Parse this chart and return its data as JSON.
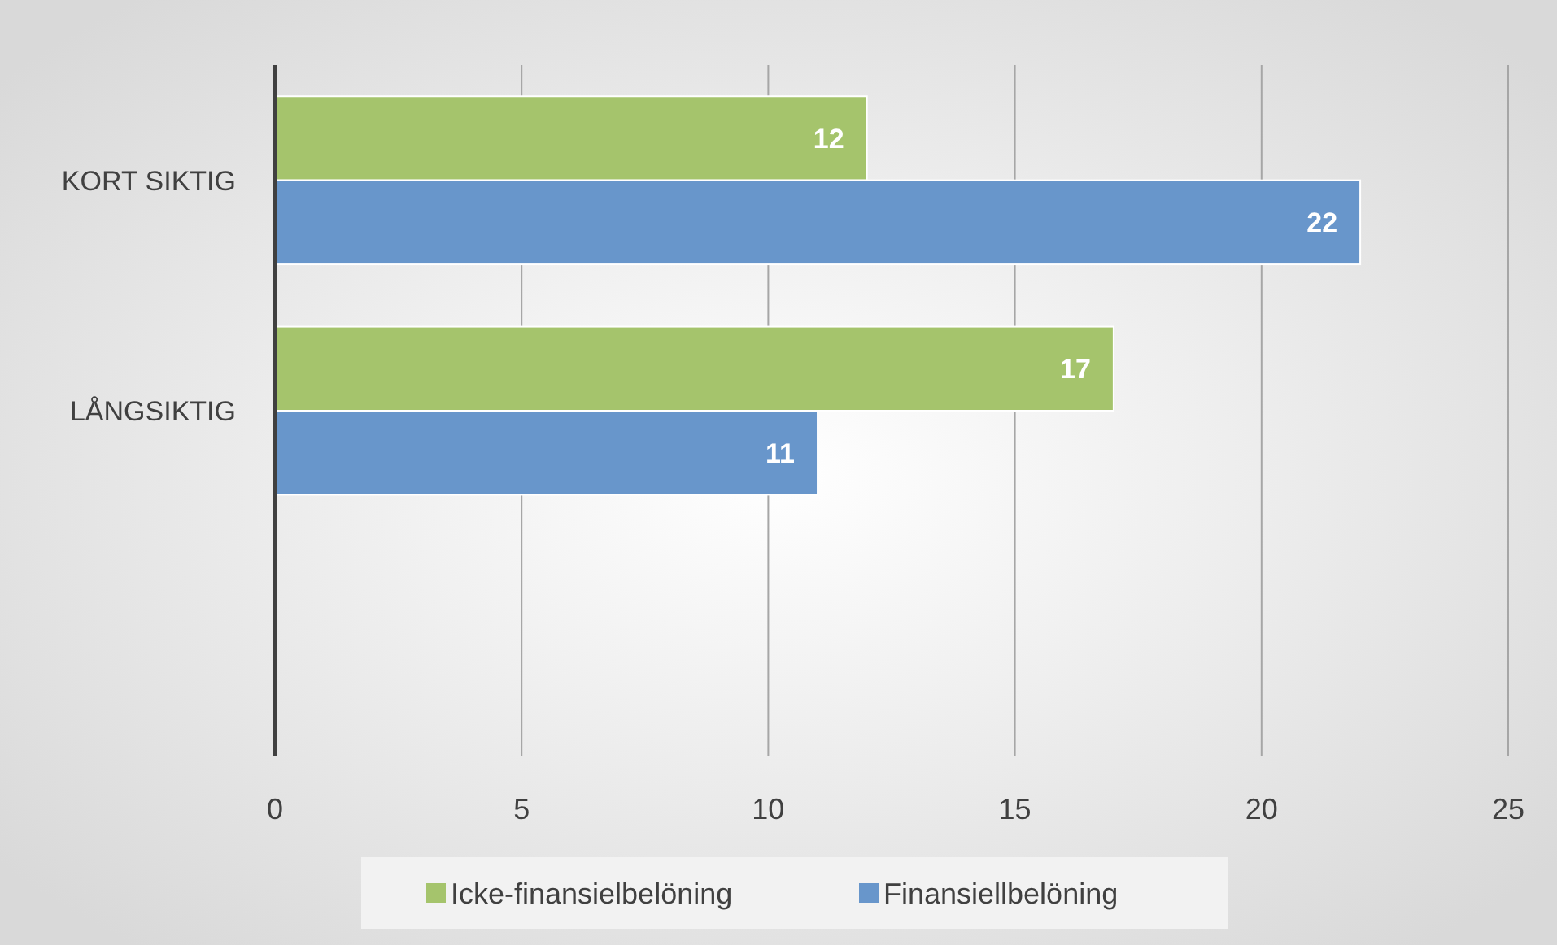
{
  "chart_data": {
    "type": "bar",
    "orientation": "horizontal",
    "categories": [
      "KORT SIKTIG",
      "LÅNGSIKTIG",
      null
    ],
    "series": [
      {
        "name": "Icke-finansielbelöning",
        "color": "#a5c46c",
        "values": [
          12,
          17,
          null
        ]
      },
      {
        "name": "Finansiellbelöning",
        "color": "#6896cb",
        "values": [
          22,
          11,
          null
        ]
      }
    ],
    "xlim": [
      0,
      25
    ],
    "xticks": [
      0,
      5,
      10,
      15,
      20,
      25
    ],
    "grid": "x",
    "legend": "bottom",
    "data_labels": true
  }
}
